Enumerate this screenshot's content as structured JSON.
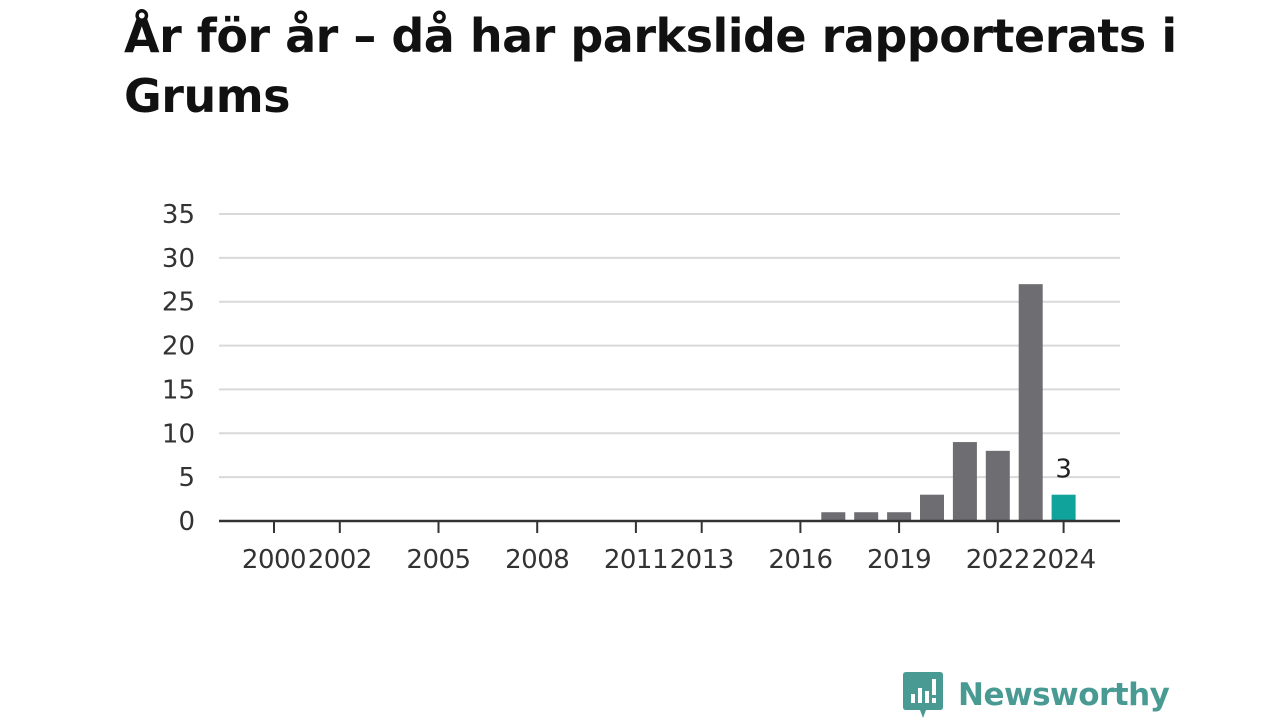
{
  "title": "År för år – då har parkslide rapporterats i Grums",
  "logo": {
    "text": "Newsworthy",
    "icon": "newsworthy-chat-bars-icon",
    "color": "#4a9a94"
  },
  "colors": {
    "bar": "#6e6d72",
    "highlight": "#0fa39b",
    "grid": "#d9d9d9",
    "axis": "#333333",
    "text": "#333333"
  },
  "chart_data": {
    "type": "bar",
    "title": "År för år – då har parkslide rapporterats i Grums",
    "xlabel": "",
    "ylabel": "",
    "categories": [
      "2000",
      "2001",
      "2002",
      "2003",
      "2004",
      "2005",
      "2006",
      "2007",
      "2008",
      "2009",
      "2010",
      "2011",
      "2012",
      "2013",
      "2014",
      "2015",
      "2016",
      "2017",
      "2018",
      "2019",
      "2020",
      "2021",
      "2022",
      "2023",
      "2024"
    ],
    "values": [
      0,
      0,
      0,
      0,
      0,
      0,
      0,
      0,
      0,
      0,
      0,
      0,
      0,
      0,
      0,
      0,
      0,
      1,
      1,
      1,
      3,
      9,
      8,
      27,
      3
    ],
    "x_tick_labels": [
      "2000",
      "2002",
      "2005",
      "2008",
      "2011",
      "2013",
      "2016",
      "2019",
      "2022",
      "2024"
    ],
    "y_ticks": [
      0,
      5,
      10,
      15,
      20,
      25,
      30,
      35
    ],
    "ylim": [
      0,
      35
    ],
    "highlight_index": 24,
    "data_labels": [
      {
        "index": 24,
        "text": "3"
      }
    ],
    "grid": true,
    "legend": "none"
  }
}
